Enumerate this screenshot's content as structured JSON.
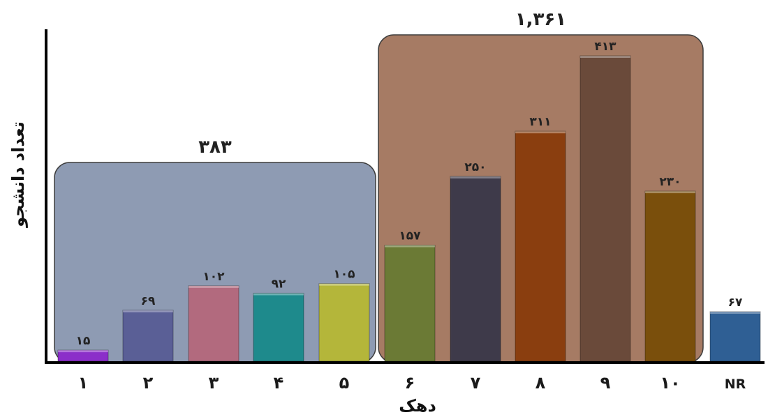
{
  "chart_data": {
    "type": "bar",
    "xlabel": "دهک",
    "ylabel": "تعداد دانشجو",
    "categories": [
      "۱",
      "۲",
      "۳",
      "۴",
      "۵",
      "۶",
      "۷",
      "۸",
      "۹",
      "۱۰",
      "NR"
    ],
    "values": [
      15,
      69,
      102,
      92,
      105,
      157,
      250,
      311,
      413,
      230,
      67
    ],
    "value_labels": [
      "۱۵",
      "۶۹",
      "۱۰۲",
      "۹۲",
      "۱۰۵",
      "۱۵۷",
      "۲۵۰",
      "۳۱۱",
      "۴۱۳",
      "۲۳۰",
      "۶۷"
    ],
    "bar_colors": [
      "#8b2fc9",
      "#5a5f96",
      "#b26a7e",
      "#1e8a8c",
      "#b4b63a",
      "#6b7a35",
      "#3e3a4a",
      "#8a3e0f",
      "#6a4a3a",
      "#7a4f0c",
      "#2f5f94"
    ],
    "ylim": [
      0,
      430
    ],
    "grid": false,
    "groups": [
      {
        "label": "۳۸۳",
        "from": 0,
        "to": 4,
        "color": "#8e9bb3"
      },
      {
        "label": "۱,۳۶۱",
        "from": 5,
        "to": 9,
        "color": "#a67b64"
      }
    ]
  }
}
